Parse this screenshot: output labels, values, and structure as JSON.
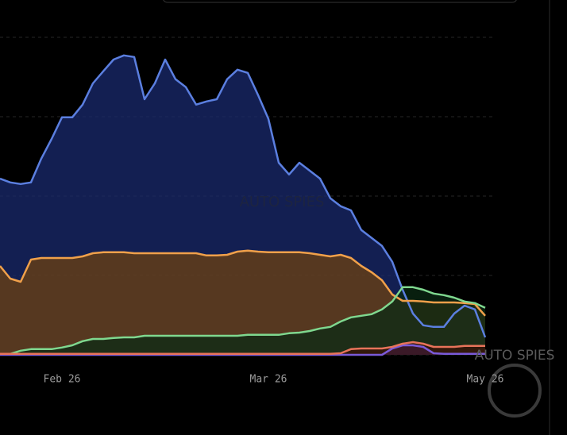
{
  "chart_data": {
    "type": "area",
    "categories": [
      null,
      null,
      null,
      null,
      null,
      null,
      "Feb 26",
      null,
      null,
      null,
      null,
      null,
      null,
      null,
      null,
      null,
      null,
      null,
      null,
      null,
      null,
      null,
      null,
      null,
      null,
      null,
      "Mar 26",
      null,
      null,
      null,
      null,
      null,
      null,
      null,
      null,
      null,
      null,
      null,
      null,
      null,
      null,
      null,
      null,
      null,
      null,
      null,
      null,
      "May 26"
    ],
    "series": [
      {
        "color": "#5b7fe0",
        "fill": "#1a2a6e",
        "values": [
          55.5,
          54.3,
          53.8,
          54.3,
          61.8,
          68,
          74.8,
          74.8,
          78.8,
          85.5,
          89.3,
          93,
          94.3,
          93.8,
          80.5,
          85.5,
          93,
          86.8,
          84.3,
          78.8,
          79.8,
          80.5,
          86.8,
          89.8,
          88.8,
          81.8,
          74.3,
          60.5,
          56.8,
          60.5,
          58,
          55.5,
          49.3,
          46.8,
          45.5,
          39.3,
          36.8,
          34.3,
          29.3,
          20.5,
          13,
          9.3,
          8.8,
          8.8,
          13,
          15.5,
          14.3,
          5.5
        ]
      },
      {
        "color": "#f0a04a",
        "fill": "#6e4210",
        "values": [
          28,
          24,
          23,
          30,
          30.5,
          30.5,
          30.5,
          30.5,
          31,
          32,
          32.3,
          32.3,
          32.3,
          32,
          32,
          32,
          32,
          32,
          32,
          32,
          31.3,
          31.3,
          31.5,
          32.5,
          32.8,
          32.5,
          32.3,
          32.3,
          32.3,
          32.3,
          32,
          31.5,
          31,
          31.5,
          30.5,
          28,
          26,
          23.5,
          19,
          17,
          17,
          16.8,
          16.5,
          16.5,
          16.5,
          16.3,
          16,
          12.3
        ]
      },
      {
        "color": "#7fd88f",
        "fill": "#0b2a14",
        "values": [
          0.3,
          0.3,
          1.3,
          1.8,
          1.8,
          1.8,
          2.3,
          3,
          4.3,
          5,
          5,
          5.3,
          5.5,
          5.5,
          6,
          6,
          6,
          6,
          6,
          6,
          6,
          6,
          6,
          6,
          6.3,
          6.3,
          6.3,
          6.3,
          6.8,
          7,
          7.5,
          8.3,
          8.8,
          10.5,
          11.8,
          12.3,
          12.8,
          14.3,
          16.8,
          21.3,
          21.3,
          20.5,
          19.3,
          18.8,
          18,
          16.8,
          16.3,
          14.8
        ]
      },
      {
        "color": "#7a5ad8",
        "fill": "#4a36a8",
        "values": [
          0,
          0,
          0,
          0,
          0,
          0,
          0,
          0,
          0,
          0,
          0,
          0,
          0,
          0,
          0,
          0,
          0,
          0,
          0,
          0,
          0,
          0,
          0,
          0,
          0,
          0,
          0,
          0,
          0,
          0,
          0,
          0,
          0,
          0,
          0,
          0,
          0,
          0,
          2,
          3,
          3,
          2.5,
          0.5,
          0.3,
          0.3,
          0.3,
          0.3,
          0.3
        ]
      },
      {
        "color": "#e8735a",
        "fill": "#3a1208",
        "values": [
          0.3,
          0.3,
          0.3,
          0.3,
          0.3,
          0.3,
          0.3,
          0.3,
          0.3,
          0.3,
          0.3,
          0.3,
          0.3,
          0.3,
          0.3,
          0.3,
          0.3,
          0.3,
          0.3,
          0.3,
          0.3,
          0.3,
          0.3,
          0.3,
          0.3,
          0.3,
          0.3,
          0.3,
          0.3,
          0.3,
          0.3,
          0.3,
          0.3,
          0.5,
          1.8,
          2,
          2,
          2,
          2.5,
          3.5,
          4,
          3.5,
          2.5,
          2.5,
          2.5,
          2.8,
          2.8,
          2.8
        ]
      }
    ],
    "ylim": [
      0,
      100
    ],
    "yticks": [
      0,
      25,
      50,
      75,
      100
    ],
    "grid": true,
    "watermark": "AUTO SPIES"
  }
}
